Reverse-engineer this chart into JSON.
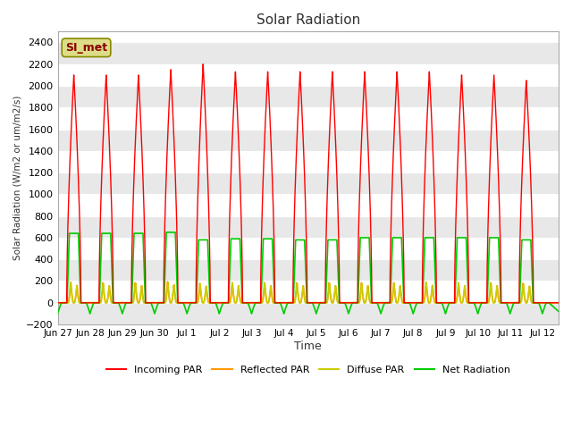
{
  "title": "Solar Radiation",
  "ylabel": "Solar Radiation (W/m2 or um/m2/s)",
  "xlabel": "Time",
  "ylim": [
    -200,
    2500
  ],
  "yticks": [
    -200,
    0,
    200,
    400,
    600,
    800,
    1000,
    1200,
    1400,
    1600,
    1800,
    2000,
    2200,
    2400
  ],
  "bg_color": "#e8e8e8",
  "fig_color": "#ffffff",
  "plot_bg": "#ffffff",
  "annotation_text": "SI_met",
  "annotation_bg": "#dddd88",
  "annotation_border": "#888800",
  "annotation_text_color": "#880000",
  "series": {
    "incoming_par": {
      "color": "#ff0000",
      "label": "Incoming PAR"
    },
    "reflected_par": {
      "color": "#ff9900",
      "label": "Reflected PAR"
    },
    "diffuse_par": {
      "color": "#cccc00",
      "label": "Diffuse PAR"
    },
    "net_radiation": {
      "color": "#00cc00",
      "label": "Net Radiation"
    }
  },
  "day_labels": [
    "Jun 27",
    "Jun 28",
    "Jun 29",
    "Jun 30",
    "Jul 1",
    "Jul 2",
    "Jul 3",
    "Jul 4",
    "Jul 5",
    "Jul 6",
    "Jul 7",
    "Jul 8",
    "Jul 9",
    "Jul 10",
    "Jul 11",
    "Jul 12"
  ]
}
